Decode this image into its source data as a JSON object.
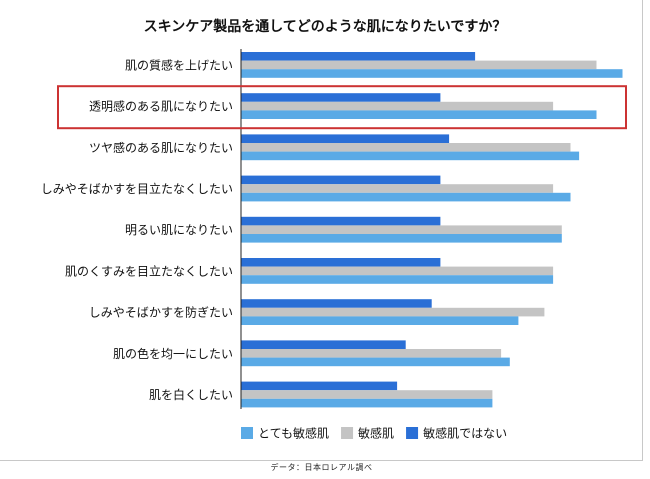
{
  "chart_data": {
    "type": "bar",
    "orientation": "horizontal",
    "title": "スキンケア製品を通してどのような肌になりたいですか？",
    "categories": [
      "肌の質感を上げたい",
      "透明感のある肌になりたい",
      "ツヤ感のある肌になりたい",
      "しみやそばかすを目立たなくしたい",
      "明るい肌になりたい",
      "肌のくすみを目立たなくしたい",
      "しみやそばかすを防ぎたい",
      "肌の色を均一にしたい",
      "肌を白くしたい"
    ],
    "series": [
      {
        "name": "敏感肌ではない",
        "color": "#2a6fd6",
        "values": [
          27,
          23,
          24,
          23,
          23,
          23,
          22,
          19,
          18
        ]
      },
      {
        "name": "敏感肌",
        "color": "#c4c4c4",
        "values": [
          41,
          36,
          38,
          36,
          37,
          36,
          35,
          30,
          29
        ]
      },
      {
        "name": "とても敏感肌",
        "color": "#5aaae6",
        "values": [
          44,
          41,
          39,
          38,
          37,
          36,
          32,
          31,
          29
        ]
      }
    ],
    "legend_order": [
      "とても敏感肌",
      "敏感肌",
      "敏感肌ではない"
    ],
    "legend_position": "bottom",
    "highlight_category": "透明感のある肌になりたい",
    "highlight_color": "#cc3333",
    "xlim": [
      0,
      45
    ],
    "grid": false
  },
  "footer": "データ：日本ロレアル調べ"
}
